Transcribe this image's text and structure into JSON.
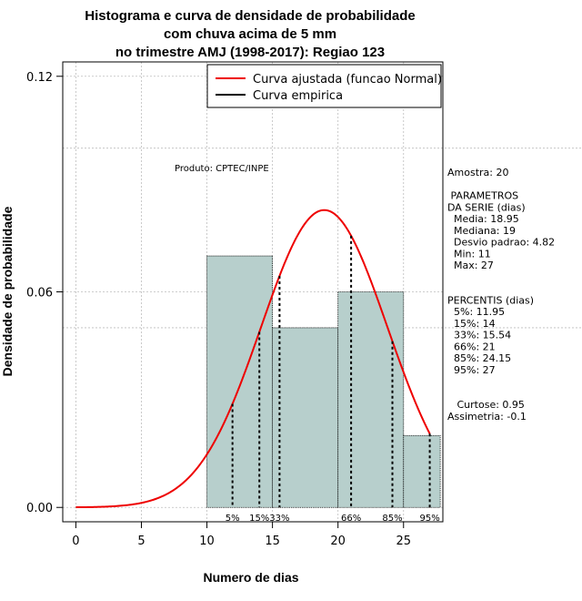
{
  "chart_data": {
    "type": "histogram",
    "title_lines": [
      "Histograma e curva de densidade de probabilidade",
      "com chuva acima de 5 mm",
      "no trimestre AMJ (1998-2017): Regiao 123"
    ],
    "xlabel": "Numero de dias",
    "ylabel": "Densidade de probabilidade",
    "xlim": [
      -1,
      28
    ],
    "ylim": [
      -0.004,
      0.124
    ],
    "xticks": [
      "0",
      "5",
      "10",
      "15",
      "20",
      "25"
    ],
    "yticks": [
      "0.00",
      "0.06",
      "0.12"
    ],
    "grid_x": [
      0,
      5,
      10,
      15,
      20,
      25
    ],
    "grid_y": [
      0.0,
      0.06,
      0.12
    ],
    "bins": [
      {
        "from": 10,
        "to": 15,
        "density": 0.07
      },
      {
        "from": 15,
        "to": 20,
        "density": 0.05
      },
      {
        "from": 20,
        "to": 25,
        "density": 0.06
      },
      {
        "from": 25,
        "to": 28,
        "density": 0.02
      }
    ],
    "bar_color": "#b7cfcc",
    "normal_curve": {
      "mean": 18.95,
      "sd": 4.82,
      "color": "#ee0000"
    },
    "percentile_marks": [
      {
        "x": 11.95,
        "label": "5%"
      },
      {
        "x": 14,
        "label": "15%"
      },
      {
        "x": 15.54,
        "label": "33%"
      },
      {
        "x": 21,
        "label": "66%"
      },
      {
        "x": 24.15,
        "label": "85%"
      },
      {
        "x": 27,
        "label": "95%"
      }
    ],
    "legend_position": "top-right",
    "legend": [
      {
        "label": "Curva ajustada (funcao Normal)",
        "color": "#ee0000"
      },
      {
        "label": "Curva empirica",
        "color": "#000000"
      }
    ],
    "source_text": "Produto: CPTEC/INPE",
    "side_text": [
      "Amostra: 20",
      "",
      " PARAMETROS",
      "DA SERIE (dias)",
      "  Media: 18.95",
      "  Mediana: 19",
      "  Desvio padrao: 4.82",
      "  Min: 11",
      "  Max: 27",
      "",
      "",
      "PERCENTIS (dias)",
      "  5%: 11.95",
      "  15%: 14",
      "  33%: 15.54",
      "  66%: 21",
      "  85%: 24.15",
      "  95%: 27",
      "",
      "",
      "   Curtose: 0.95",
      "Assimetria: -0.1"
    ]
  }
}
